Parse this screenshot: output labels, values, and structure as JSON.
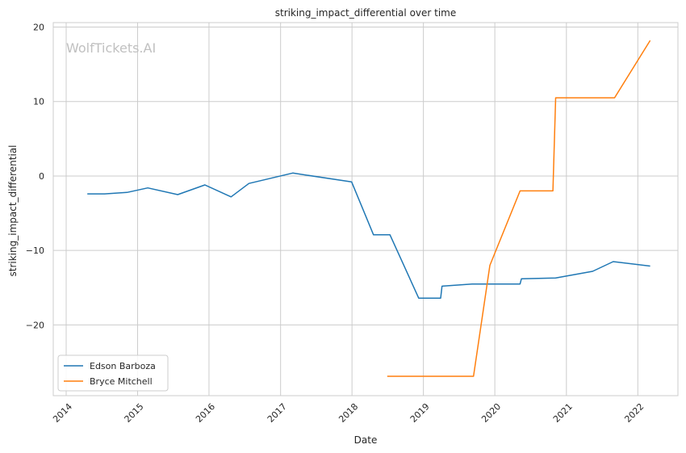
{
  "chart_data": {
    "type": "line",
    "title": "striking_impact_differential over time",
    "xlabel": "Date",
    "ylabel": "striking_impact_differential",
    "watermark": "WolfTickets.AI",
    "xlim": [
      "2013-10-27",
      "2022-07-25"
    ],
    "ylim": [
      -29.5,
      20.6
    ],
    "x_ticks": [
      "2014-01-01",
      "2015-01-01",
      "2016-01-01",
      "2017-01-01",
      "2018-01-01",
      "2019-01-01",
      "2020-01-01",
      "2021-01-01",
      "2022-01-01"
    ],
    "x_tick_labels": [
      "2014",
      "2015",
      "2016",
      "2017",
      "2018",
      "2019",
      "2020",
      "2021",
      "2022"
    ],
    "y_ticks": [
      20,
      10,
      0,
      -10,
      -20
    ],
    "y_tick_labels": [
      "20",
      "10",
      "0",
      "−10",
      "−20"
    ],
    "grid": true,
    "legend": "lower-left",
    "series": [
      {
        "name": "Edson Barboza",
        "color": "#1f77b4",
        "points": [
          [
            "2014-04-19",
            -2.4
          ],
          [
            "2014-07-16",
            -2.4
          ],
          [
            "2014-11-08",
            -2.2
          ],
          [
            "2015-02-22",
            -1.6
          ],
          [
            "2015-07-25",
            -2.5
          ],
          [
            "2015-12-11",
            -1.2
          ],
          [
            "2016-04-23",
            -2.8
          ],
          [
            "2016-07-23",
            -1.0
          ],
          [
            "2017-03-04",
            0.4
          ],
          [
            "2017-12-30",
            -0.8
          ],
          [
            "2018-04-21",
            -7.9
          ],
          [
            "2018-07-14",
            -7.9
          ],
          [
            "2018-12-08",
            -16.4
          ],
          [
            "2019-03-30",
            -16.4
          ],
          [
            "2019-04-06",
            -14.8
          ],
          [
            "2019-09-07",
            -14.5
          ],
          [
            "2020-05-09",
            -14.5
          ],
          [
            "2020-05-16",
            -13.8
          ],
          [
            "2020-11-07",
            -13.7
          ],
          [
            "2021-05-15",
            -12.8
          ],
          [
            "2021-08-28",
            -11.5
          ],
          [
            "2022-03-05",
            -12.1
          ]
        ]
      },
      {
        "name": "Bryce Mitchell",
        "color": "#ff7f0e",
        "points": [
          [
            "2018-06-30",
            -26.9
          ],
          [
            "2019-09-14",
            -26.9
          ],
          [
            "2019-12-07",
            -12.0
          ],
          [
            "2020-05-09",
            -2.0
          ],
          [
            "2020-10-24",
            -2.0
          ],
          [
            "2020-11-07",
            10.5
          ],
          [
            "2021-09-04",
            10.5
          ],
          [
            "2022-03-05",
            18.2
          ]
        ]
      }
    ]
  }
}
